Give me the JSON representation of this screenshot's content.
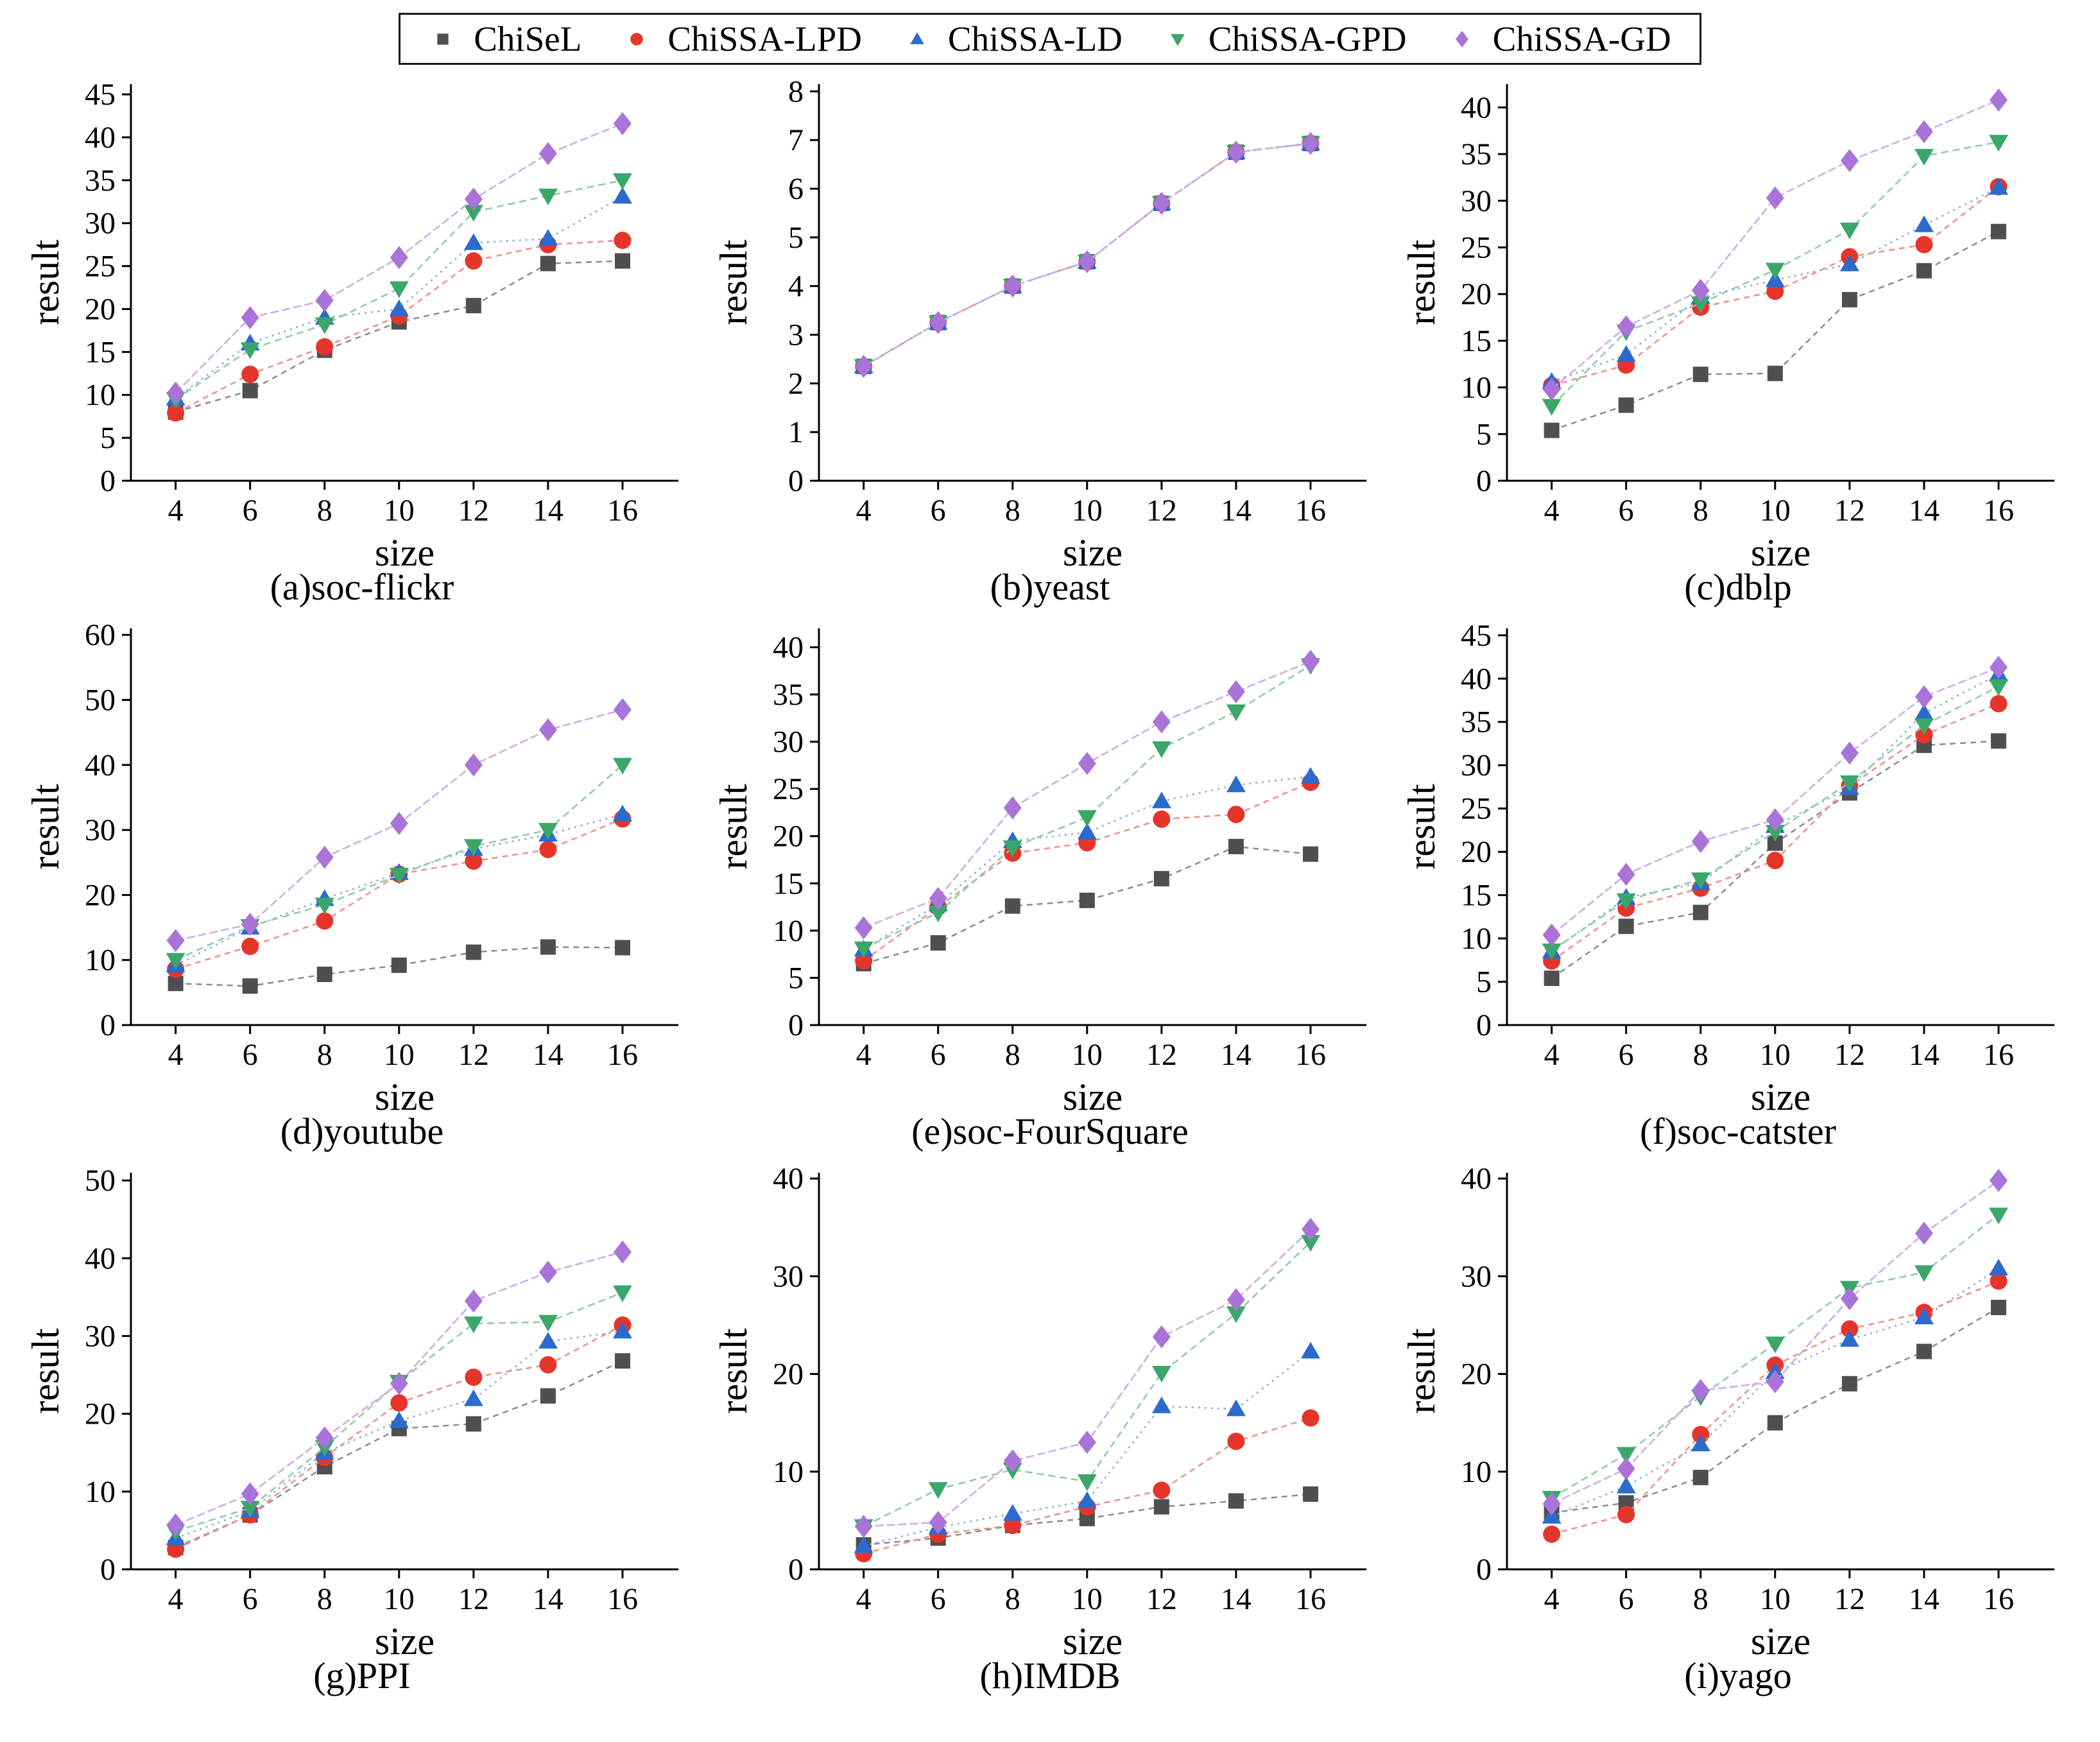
{
  "legend": {
    "items": [
      {
        "label": "ChiSeL",
        "marker": "square",
        "color": "#4f4f4f",
        "line_color": "#8a8a8a",
        "dash": "9 7"
      },
      {
        "label": "ChiSSA-LPD",
        "marker": "circle",
        "color": "#e5352b",
        "line_color": "#ef8d86",
        "dash": "9 7"
      },
      {
        "label": "ChiSSA-LD",
        "marker": "triangle-up",
        "color": "#2b6bce",
        "line_color": "#82a9e2",
        "dash": "3 7"
      },
      {
        "label": "ChiSSA-GPD",
        "marker": "triangle-down",
        "color": "#3aa769",
        "line_color": "#8cc9a8",
        "dash": "11 7"
      },
      {
        "label": "ChiSSA-GD",
        "marker": "diamond",
        "color": "#a973d9",
        "line_color": "#c9abe8",
        "dash": "13 5"
      }
    ]
  },
  "chart_data": [
    {
      "type": "line",
      "caption": "(a)soc-flickr",
      "xlabel": "size",
      "ylabel": "result",
      "x": [
        4,
        6,
        8,
        10,
        12,
        14,
        16
      ],
      "ylim": [
        0,
        46.2
      ],
      "ytick_step": 5,
      "ytick_max": 45,
      "series": [
        {
          "name": "ChiSeL",
          "values": [
            8.0,
            10.5,
            15.2,
            18.5,
            20.4,
            25.3,
            25.6
          ]
        },
        {
          "name": "ChiSSA-LPD",
          "values": [
            7.9,
            12.4,
            15.6,
            19.2,
            25.6,
            27.5,
            28.0
          ]
        },
        {
          "name": "ChiSSA-LD",
          "values": [
            9.6,
            16.0,
            19.0,
            20.0,
            27.7,
            28.2,
            33.1
          ]
        },
        {
          "name": "ChiSSA-GPD",
          "values": [
            9.5,
            15.3,
            18.2,
            22.4,
            31.3,
            33.2,
            35.0
          ]
        },
        {
          "name": "ChiSSA-GD",
          "values": [
            10.2,
            19.0,
            21.0,
            26.0,
            32.8,
            38.1,
            41.6
          ]
        }
      ]
    },
    {
      "type": "line",
      "caption": "(b)yeast",
      "xlabel": "size",
      "ylabel": "result",
      "x": [
        4,
        6,
        8,
        10,
        12,
        14,
        16
      ],
      "ylim": [
        0,
        8.15
      ],
      "ytick_step": 1,
      "ytick_max": 8,
      "series": [
        {
          "name": "ChiSeL",
          "values": [
            2.35,
            3.25,
            4.0,
            4.5,
            5.7,
            6.75,
            6.93
          ]
        },
        {
          "name": "ChiSSA-LPD",
          "values": [
            2.35,
            3.25,
            4.0,
            4.5,
            5.7,
            6.75,
            6.93
          ]
        },
        {
          "name": "ChiSSA-LD",
          "values": [
            2.35,
            3.25,
            4.0,
            4.5,
            5.7,
            6.75,
            6.93
          ]
        },
        {
          "name": "ChiSSA-GPD",
          "values": [
            2.35,
            3.25,
            4.0,
            4.5,
            5.7,
            6.75,
            6.93
          ]
        },
        {
          "name": "ChiSSA-GD",
          "values": [
            2.35,
            3.25,
            4.0,
            4.5,
            5.7,
            6.75,
            6.93
          ]
        }
      ]
    },
    {
      "type": "line",
      "caption": "(c)dblp",
      "xlabel": "size",
      "ylabel": "result",
      "x": [
        4,
        6,
        8,
        10,
        12,
        14,
        16
      ],
      "ylim": [
        0,
        42.5
      ],
      "ytick_step": 5,
      "ytick_max": 40,
      "series": [
        {
          "name": "ChiSeL",
          "values": [
            5.4,
            8.1,
            11.4,
            11.5,
            19.4,
            22.5,
            26.7
          ]
        },
        {
          "name": "ChiSSA-LPD",
          "values": [
            10.2,
            12.4,
            18.6,
            20.3,
            24.0,
            25.3,
            31.5
          ]
        },
        {
          "name": "ChiSSA-LD",
          "values": [
            10.6,
            13.5,
            19.7,
            21.5,
            23.2,
            27.4,
            31.4
          ]
        },
        {
          "name": "ChiSSA-GPD",
          "values": [
            8.0,
            16.0,
            19.0,
            22.6,
            26.9,
            34.8,
            36.3
          ]
        },
        {
          "name": "ChiSSA-GD",
          "values": [
            9.8,
            16.5,
            20.4,
            30.3,
            34.3,
            37.4,
            40.8
          ]
        }
      ]
    },
    {
      "type": "line",
      "caption": "(d)youtube",
      "xlabel": "size",
      "ylabel": "result",
      "x": [
        4,
        6,
        8,
        10,
        12,
        14,
        16
      ],
      "ylim": [
        0,
        61
      ],
      "ytick_step": 10,
      "ytick_max": 60,
      "series": [
        {
          "name": "ChiSeL",
          "values": [
            6.4,
            6.0,
            7.8,
            9.2,
            11.2,
            12.0,
            11.9
          ]
        },
        {
          "name": "ChiSSA-LPD",
          "values": [
            8.6,
            12.1,
            16.0,
            23.2,
            25.2,
            27.0,
            31.7
          ]
        },
        {
          "name": "ChiSSA-LD",
          "values": [
            9.2,
            15.0,
            19.4,
            23.4,
            27.1,
            29.3,
            32.4
          ]
        },
        {
          "name": "ChiSSA-GPD",
          "values": [
            10.0,
            15.2,
            18.5,
            23.1,
            27.5,
            30.0,
            40.0
          ]
        },
        {
          "name": "ChiSSA-GD",
          "values": [
            13.0,
            15.5,
            25.8,
            31.0,
            40.0,
            45.4,
            48.5
          ]
        }
      ]
    },
    {
      "type": "line",
      "caption": "(e)soc-FourSquare",
      "xlabel": "size",
      "ylabel": "result",
      "x": [
        4,
        6,
        8,
        10,
        12,
        14,
        16
      ],
      "ylim": [
        0,
        42
      ],
      "ytick_step": 5,
      "ytick_max": 40,
      "series": [
        {
          "name": "ChiSeL",
          "values": [
            6.5,
            8.7,
            12.6,
            13.2,
            15.5,
            18.9,
            18.1
          ]
        },
        {
          "name": "ChiSSA-LPD",
          "values": [
            6.8,
            12.5,
            18.2,
            19.3,
            21.8,
            22.3,
            25.7
          ]
        },
        {
          "name": "ChiSSA-LD",
          "values": [
            8.0,
            12.8,
            19.5,
            20.4,
            23.7,
            25.4,
            26.3
          ]
        },
        {
          "name": "ChiSSA-GPD",
          "values": [
            8.1,
            11.9,
            18.8,
            22.0,
            29.3,
            33.2,
            38.1
          ]
        },
        {
          "name": "ChiSSA-GD",
          "values": [
            10.3,
            13.4,
            23.0,
            27.7,
            32.1,
            35.3,
            38.5
          ]
        }
      ]
    },
    {
      "type": "line",
      "caption": "(f)soc-catster",
      "xlabel": "size",
      "ylabel": "result",
      "x": [
        4,
        6,
        8,
        10,
        12,
        14,
        16
      ],
      "ylim": [
        0,
        45.8
      ],
      "ytick_step": 5,
      "ytick_max": 45,
      "series": [
        {
          "name": "ChiSeL",
          "values": [
            5.4,
            11.4,
            13.0,
            21.0,
            26.8,
            32.3,
            32.8
          ]
        },
        {
          "name": "ChiSSA-LPD",
          "values": [
            7.4,
            13.5,
            15.8,
            19.0,
            27.6,
            33.5,
            37.1
          ]
        },
        {
          "name": "ChiSSA-LD",
          "values": [
            8.5,
            14.7,
            16.4,
            23.0,
            27.4,
            36.0,
            40.5
          ]
        },
        {
          "name": "ChiSSA-GPD",
          "values": [
            8.6,
            14.4,
            16.8,
            22.3,
            28.0,
            34.6,
            39.1
          ]
        },
        {
          "name": "ChiSSA-GD",
          "values": [
            10.4,
            17.4,
            21.2,
            23.7,
            31.4,
            37.9,
            41.3
          ]
        }
      ]
    },
    {
      "type": "line",
      "caption": "(g)PPI",
      "xlabel": "size",
      "ylabel": "result",
      "x": [
        4,
        6,
        8,
        10,
        12,
        14,
        16
      ],
      "ylim": [
        0,
        51
      ],
      "ytick_step": 10,
      "ytick_max": 50,
      "series": [
        {
          "name": "ChiSeL",
          "values": [
            2.8,
            7.0,
            13.2,
            18.1,
            18.7,
            22.3,
            26.8
          ]
        },
        {
          "name": "ChiSSA-LPD",
          "values": [
            2.6,
            7.0,
            14.4,
            21.4,
            24.7,
            26.3,
            31.4
          ]
        },
        {
          "name": "ChiSSA-LD",
          "values": [
            4.0,
            7.5,
            15.0,
            19.1,
            21.9,
            29.3,
            30.6
          ]
        },
        {
          "name": "ChiSSA-GPD",
          "values": [
            4.9,
            7.9,
            15.7,
            24.1,
            31.6,
            31.8,
            35.6
          ]
        },
        {
          "name": "ChiSSA-GD",
          "values": [
            5.7,
            9.7,
            16.9,
            23.9,
            34.5,
            38.2,
            40.8
          ]
        }
      ]
    },
    {
      "type": "line",
      "caption": "(h)IMDB",
      "xlabel": "size",
      "ylabel": "result",
      "x": [
        4,
        6,
        8,
        10,
        12,
        14,
        16
      ],
      "ylim": [
        0,
        40.6
      ],
      "ytick_step": 10,
      "ytick_max": 40,
      "series": [
        {
          "name": "ChiSeL",
          "values": [
            2.5,
            3.2,
            4.5,
            5.2,
            6.4,
            7.0,
            7.7
          ]
        },
        {
          "name": "ChiSSA-LPD",
          "values": [
            1.6,
            3.6,
            4.5,
            6.4,
            8.1,
            13.1,
            15.5
          ]
        },
        {
          "name": "ChiSSA-LD",
          "values": [
            2.4,
            4.3,
            5.7,
            7.0,
            16.7,
            16.4,
            22.3
          ]
        },
        {
          "name": "ChiSSA-GPD",
          "values": [
            4.4,
            8.2,
            10.2,
            9.0,
            20.1,
            26.2,
            33.5
          ]
        },
        {
          "name": "ChiSSA-GD",
          "values": [
            4.4,
            4.8,
            11.1,
            13.0,
            23.8,
            27.6,
            34.8
          ]
        }
      ]
    },
    {
      "type": "line",
      "caption": "(i)yago",
      "xlabel": "size",
      "ylabel": "result",
      "x": [
        4,
        6,
        8,
        10,
        12,
        14,
        16
      ],
      "ylim": [
        0,
        40.6
      ],
      "ytick_step": 10,
      "ytick_max": 40,
      "series": [
        {
          "name": "ChiSeL",
          "values": [
            5.8,
            6.8,
            9.4,
            15.0,
            19.0,
            22.3,
            26.8
          ]
        },
        {
          "name": "ChiSSA-LPD",
          "values": [
            3.6,
            5.6,
            13.8,
            20.9,
            24.6,
            26.3,
            29.5
          ]
        },
        {
          "name": "ChiSSA-LD",
          "values": [
            5.4,
            8.5,
            12.8,
            20.2,
            23.5,
            25.8,
            30.8
          ]
        },
        {
          "name": "ChiSSA-GPD",
          "values": [
            7.3,
            11.8,
            17.7,
            23.1,
            28.8,
            30.4,
            36.3
          ]
        },
        {
          "name": "ChiSSA-GD",
          "values": [
            6.7,
            10.3,
            18.3,
            19.2,
            27.7,
            34.4,
            39.8
          ]
        }
      ]
    }
  ]
}
